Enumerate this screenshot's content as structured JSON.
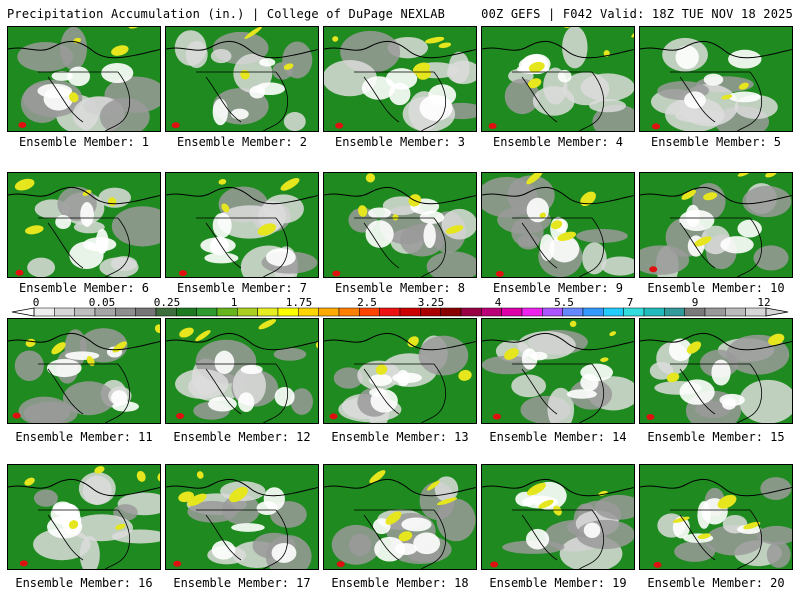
{
  "header": {
    "title": "Precipitation Accumulation (in.) | College of DuPage NEXLAB",
    "run_info": "00Z GEFS | F042 Valid: 18Z TUE NOV 18 2025"
  },
  "members": [
    {
      "label": "Ensemble Member: 1"
    },
    {
      "label": "Ensemble Member: 2"
    },
    {
      "label": "Ensemble Member: 3"
    },
    {
      "label": "Ensemble Member: 4"
    },
    {
      "label": "Ensemble Member: 5"
    },
    {
      "label": "Ensemble Member: 6"
    },
    {
      "label": "Ensemble Member: 7"
    },
    {
      "label": "Ensemble Member: 8"
    },
    {
      "label": "Ensemble Member: 9"
    },
    {
      "label": "Ensemble Member: 10"
    },
    {
      "label": "Ensemble Member: 11"
    },
    {
      "label": "Ensemble Member: 12"
    },
    {
      "label": "Ensemble Member: 13"
    },
    {
      "label": "Ensemble Member: 14"
    },
    {
      "label": "Ensemble Member: 15"
    },
    {
      "label": "Ensemble Member: 16"
    },
    {
      "label": "Ensemble Member: 17"
    },
    {
      "label": "Ensemble Member: 18"
    },
    {
      "label": "Ensemble Member: 19"
    },
    {
      "label": "Ensemble Member: 20"
    }
  ],
  "colorbar": {
    "ticks": [
      "0",
      "0.05",
      "0.25",
      "1",
      "1.75",
      "2.5",
      "3.25",
      "4",
      "5.5",
      "7",
      "9",
      "12"
    ],
    "colors": [
      "#eeeeee",
      "#d6d6d6",
      "#bebebe",
      "#a6a6a6",
      "#8e8e8e",
      "#767676",
      "#3e6e3e",
      "#1e7a1e",
      "#2f9a2f",
      "#66b41e",
      "#a8cf22",
      "#e6ee22",
      "#ffff00",
      "#ffd500",
      "#ffaa00",
      "#ff7f00",
      "#ff4400",
      "#ee1111",
      "#cc0000",
      "#aa0000",
      "#880000",
      "#990044",
      "#bb0077",
      "#dd00aa",
      "#ee22ee",
      "#aa55ff",
      "#6688ff",
      "#3399ff",
      "#22ccff",
      "#33dddd",
      "#22bbbb",
      "#339999",
      "#7a7a7a",
      "#999999",
      "#bbbbbb",
      "#d6d6d6"
    ]
  },
  "style": {
    "land_green": "#1f8a1f",
    "ocean_gray": "#9a9a9a",
    "light_gray": "#dcdcdc",
    "yellow": "#e6e61e",
    "red": "#e01010",
    "border_color": "#000000"
  }
}
